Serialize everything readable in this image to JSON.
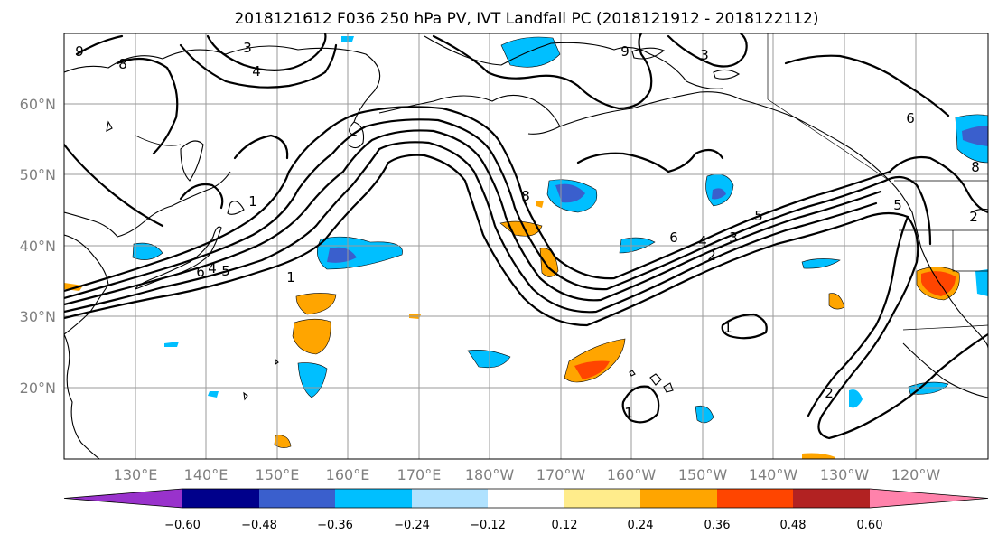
{
  "title": "2018121612 F036 250 hPa PV, IVT Landfall PC (2018121912 - 2018122112)",
  "map": {
    "lat_labels": [
      "60°N",
      "50°N",
      "40°N",
      "30°N",
      "20°N"
    ],
    "lon_labels": [
      "130°E",
      "140°E",
      "150°E",
      "160°E",
      "170°E",
      "180°W",
      "170°W",
      "160°W",
      "150°W",
      "140°W",
      "130°W",
      "120°W"
    ],
    "contour_labels": [
      "3",
      "4",
      "8",
      "9",
      "1",
      "6",
      "5",
      "4",
      "1",
      "6",
      "5",
      "1",
      "8",
      "6",
      "4",
      "3",
      "2",
      "5",
      "2",
      "2",
      "1",
      "9",
      "8",
      "3"
    ]
  },
  "colorbar": {
    "colors": [
      "#9932cc",
      "#00008b",
      "#3a5fcd",
      "#00bfff",
      "#b0e2ff",
      "#ffffff",
      "#ffec8b",
      "#ffa500",
      "#ff4500",
      "#b22222",
      "#ff82ab"
    ],
    "tick_labels": [
      "−0.60",
      "−0.48",
      "−0.36",
      "−0.24",
      "−0.12",
      "0.12",
      "0.24",
      "0.36",
      "0.48",
      "0.60"
    ]
  }
}
